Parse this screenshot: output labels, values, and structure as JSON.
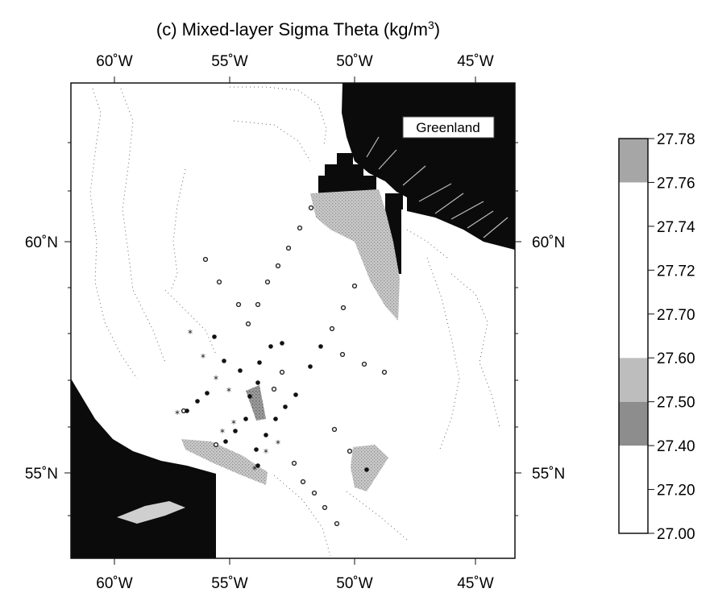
{
  "title": "(c) Mixed-layer Sigma Theta (kg/m",
  "title_sup": "3",
  "title_close": ")",
  "map": {
    "land_label": "Greenland",
    "lon_ticks_top": [
      "60˚W",
      "55˚W",
      "50˚W",
      "45˚W"
    ],
    "lon_ticks_bottom": [
      "60˚W",
      "55˚W",
      "50˚W",
      "45˚W"
    ],
    "lat_ticks_left": [
      "60˚N",
      "55˚N"
    ],
    "lat_ticks_right": [
      "60˚N",
      "55˚N"
    ],
    "land_color": "#0a0a0a",
    "station_symbols": [
      "filled-dot",
      "open-circle",
      "star"
    ]
  },
  "colorbar": {
    "labels": [
      "27.78",
      "27.76",
      "27.74",
      "27.72",
      "27.70",
      "27.60",
      "27.50",
      "27.40",
      "27.20",
      "27.00"
    ],
    "bins": [
      {
        "from": "27.00",
        "to": "27.40",
        "color": "#050505"
      },
      {
        "from": "27.40",
        "to": "27.50",
        "color": "#8d8d8d"
      },
      {
        "from": "27.50",
        "to": "27.60",
        "color": "#bdbdbd"
      },
      {
        "from": "27.60",
        "to": "27.70",
        "color": "#ffffff"
      },
      {
        "from": "27.70",
        "to": "27.72",
        "color": "#ffffff"
      },
      {
        "from": "27.72",
        "to": "27.74",
        "color": "#ffffff"
      },
      {
        "from": "27.74",
        "to": "27.76",
        "color": "#ffffff"
      },
      {
        "from": "27.76",
        "to": "27.78",
        "color": "#a6a6a6"
      }
    ]
  }
}
